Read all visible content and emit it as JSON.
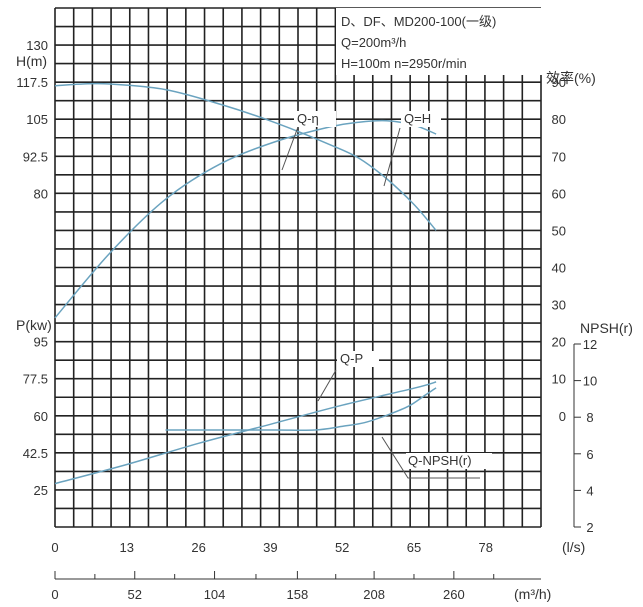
{
  "chart_data": {
    "type": "line",
    "title": "D、DF、MD200-100(一级)",
    "subtitle_lines": [
      "Q=200m³/h",
      "H=100m  n=2950r/min"
    ],
    "x_flow_ls": {
      "unit_label": "(l/s)",
      "ticks": [
        0,
        13,
        26,
        39,
        52,
        65,
        78
      ],
      "range": [
        0,
        88
      ]
    },
    "x_flow_m3h": {
      "unit_label": "(m³/h)",
      "tick_labels": [
        "0",
        "52",
        "104",
        "158",
        "208",
        "260"
      ],
      "tick_values_ls": [
        0,
        14.44,
        28.89,
        43.89,
        57.78,
        72.22
      ],
      "minor_tick_values_ls": [
        7.22,
        21.67,
        36.39,
        50.83,
        65.0,
        79.44
      ]
    },
    "y_head": {
      "unit_label": "H(m)",
      "tick_labels": [
        "130",
        "117.5",
        "105",
        "92.5",
        "80"
      ],
      "tick_values": [
        130,
        117.5,
        105,
        92.5,
        80
      ]
    },
    "y_power": {
      "unit_label": "P(kw)",
      "tick_labels": [
        "95",
        "77.5",
        "60",
        "42.5",
        "25"
      ],
      "tick_values": [
        95,
        77.5,
        60,
        42.5,
        25
      ]
    },
    "y_efficiency": {
      "unit_label": "效率(%)",
      "tick_labels": [
        "90",
        "80",
        "70",
        "60",
        "50",
        "40",
        "30",
        "20",
        "10",
        "0"
      ],
      "tick_values": [
        90,
        80,
        70,
        60,
        50,
        40,
        30,
        20,
        10,
        0
      ]
    },
    "y_npsh": {
      "unit_label": "NPSH(r)",
      "tick_labels": [
        "12",
        "10",
        "8",
        "6",
        "4",
        "2"
      ],
      "tick_values": [
        12,
        10,
        8,
        6,
        4,
        2
      ],
      "range": [
        2,
        12
      ]
    },
    "series": [
      {
        "name": "Q-H",
        "axis": "y_head",
        "x": [
          0,
          10,
          20,
          30,
          40,
          50,
          55,
          60,
          65,
          69
        ],
        "y": [
          38,
          60,
          78,
          90,
          97.5,
          102.5,
          104,
          104.5,
          103,
          100
        ]
      },
      {
        "name": "Q-η",
        "axis": "y_efficiency",
        "x": [
          0,
          5,
          10,
          20,
          30,
          40,
          50,
          55,
          60,
          65,
          69
        ],
        "y": [
          89,
          89.5,
          89.5,
          88,
          84,
          79,
          73,
          69.5,
          64,
          57,
          50
        ]
      },
      {
        "name": "Q-P",
        "axis": "y_power",
        "x": [
          0,
          13,
          26,
          39,
          52,
          65,
          69
        ],
        "y": [
          28,
          37,
          47,
          56,
          65,
          73,
          76
        ]
      },
      {
        "name": "Q-NPSH(r)",
        "axis": "y_npsh",
        "x": [
          20,
          30,
          40,
          47,
          52,
          56,
          60,
          64,
          67,
          69
        ],
        "y": [
          7.3,
          7.3,
          7.3,
          7.3,
          7.5,
          7.7,
          8.1,
          8.6,
          9.2,
          9.6
        ]
      }
    ],
    "curve_labels": [
      "Q-η",
      "Q=H",
      "Q-P",
      "Q-NPSH(r)"
    ],
    "grid": true,
    "legend": "none"
  },
  "colors": {
    "grid": "#222222",
    "curve": "#6aa3bf",
    "text": "#333333",
    "leader": "#555555"
  }
}
